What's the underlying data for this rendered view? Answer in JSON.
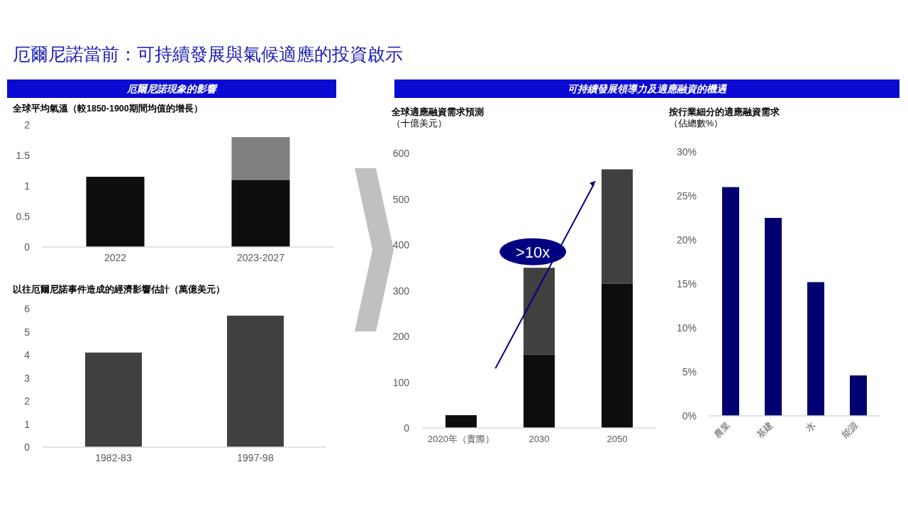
{
  "chart_data": [
    {
      "type": "other",
      "title": "厄爾尼諾當前：可持續發展與氣候適應的投資啟示",
      "annotations": [
        "厄爾尼諾現象的影響",
        "可持續發展領導力及適應融資的機遇"
      ]
    },
    {
      "type": "bar",
      "title": "全球平均氣溫（較1850-1900期間均值的增長）",
      "categories": [
        "2022",
        "2023-2027"
      ],
      "stacked": true,
      "series": [
        {
          "color": "#0d0d0d",
          "values": [
            1.15,
            1.1
          ]
        },
        {
          "color": "#7f7f7f",
          "values": [
            null,
            0.7
          ]
        }
      ],
      "ylim": [
        0,
        2
      ],
      "yticks": [
        0,
        {
          "value": 0.5,
          "label": "0.5"
        },
        1,
        {
          "value": 1.5,
          "label": "1.5"
        },
        2
      ],
      "grid": false
    },
    {
      "type": "bar",
      "title": "以往厄爾尼諾事件造成的經濟影響估計（萬億美元）",
      "categories": [
        "1982-83",
        "1997-98"
      ],
      "values": [
        4.1,
        5.7
      ],
      "color": "#404040",
      "ylim": [
        0,
        6
      ],
      "yticks": [
        0,
        1,
        2,
        3,
        4,
        5,
        6
      ],
      "grid": false
    },
    {
      "type": "bar",
      "title": "全球適應融資需求預測",
      "subtitle": "（十億美元）",
      "categories": [
        "2020年（實際）",
        "2030",
        "2050"
      ],
      "stacked": true,
      "series": [
        {
          "color": "#0d0d0d",
          "values": [
            28,
            160,
            315
          ]
        },
        {
          "color": "#404040",
          "values": [
            null,
            190,
            250
          ]
        }
      ],
      "ylim": [
        0,
        600
      ],
      "yticks": [
        0,
        100,
        200,
        300,
        400,
        500,
        600
      ],
      "annotations": [
        ">10x"
      ],
      "grid": false
    },
    {
      "type": "bar",
      "title": "按行業細分的適應融資需求",
      "subtitle": "（佔總數%）",
      "categories": [
        "農業",
        "基建",
        "水",
        "能源"
      ],
      "values": [
        26,
        22.5,
        15.2,
        4.6
      ],
      "color": "#000070",
      "ylim": [
        0,
        30
      ],
      "yticks": [
        {
          "value": 0,
          "label": "0%"
        },
        {
          "value": 5,
          "label": "5%"
        },
        {
          "value": 10,
          "label": "10%"
        },
        {
          "value": 15,
          "label": "15%"
        },
        {
          "value": 20,
          "label": "20%"
        },
        {
          "value": 25,
          "label": "25%"
        },
        {
          "value": 30,
          "label": "30%"
        }
      ],
      "grid": false
    }
  ]
}
